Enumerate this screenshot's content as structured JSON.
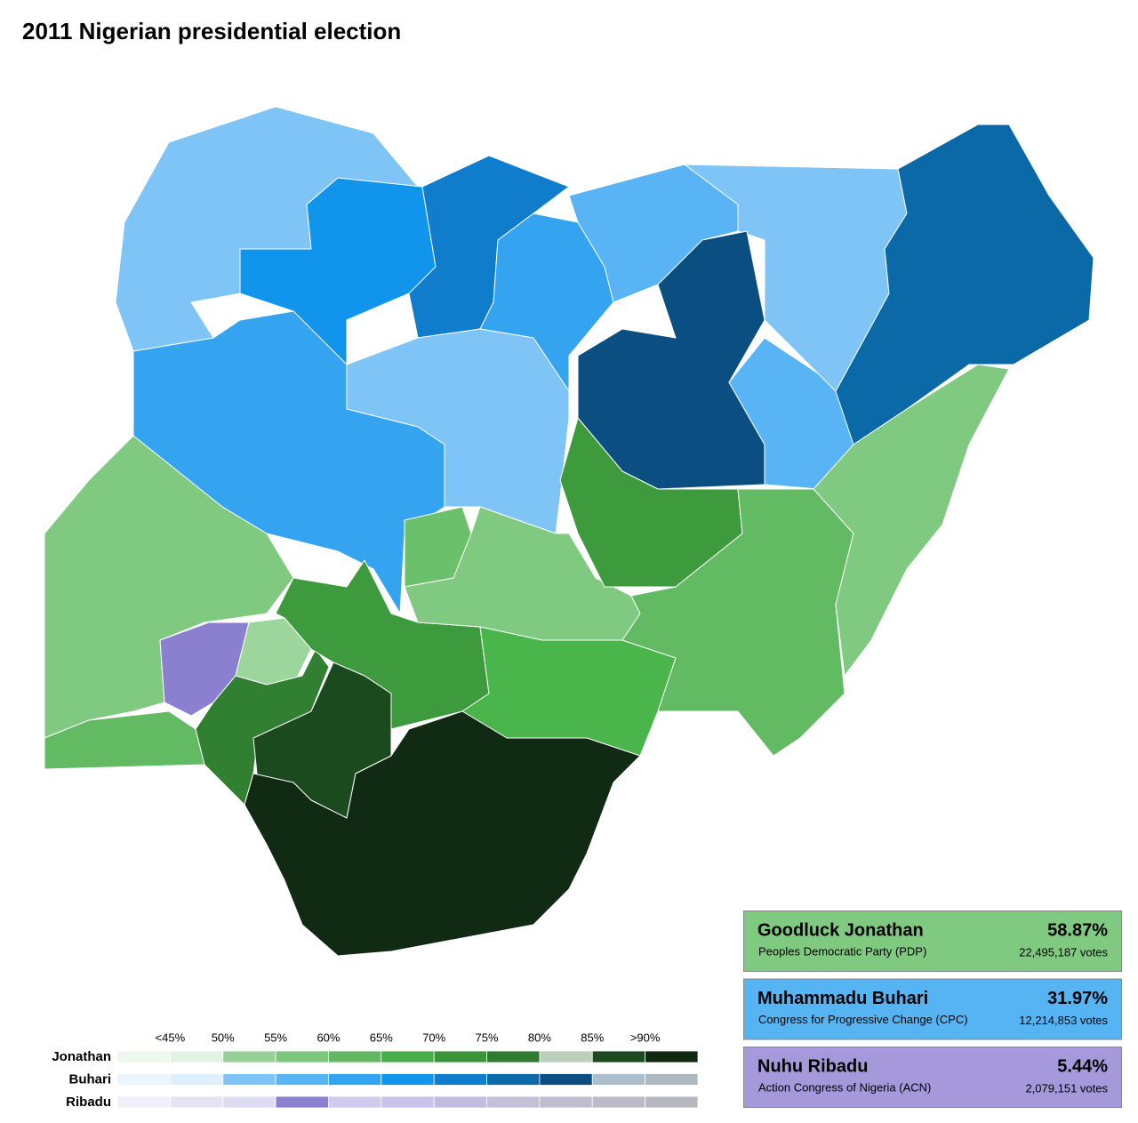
{
  "title": "2011 Nigerian presidential election",
  "legend": {
    "labels": [
      "<45%",
      "50%",
      "55%",
      "60%",
      "65%",
      "70%",
      "75%",
      "80%",
      "85%",
      ">90%"
    ],
    "rows": [
      {
        "name": "Jonathan",
        "colors": [
          "#eef7ee",
          "#e3f3e3",
          "#97d097",
          "#7dc67d",
          "#61b861",
          "#48ad48",
          "#3a943a",
          "#2f7b2f",
          "#bccfbc",
          "#1d4a21",
          "#10280f"
        ]
      },
      {
        "name": "Buhari",
        "colors": [
          "#eaf5fd",
          "#dff0fc",
          "#7ec4f6",
          "#58b4f4",
          "#34a4f0",
          "#1094ec",
          "#0f7dcc",
          "#0b69a8",
          "#0b4f82",
          "#adbfcc",
          "#aeb8c0"
        ]
      },
      {
        "name": "Ribadu",
        "colors": [
          "#f1f0fa",
          "#e6e4f4",
          "#dedcf2",
          "#8b80d0",
          "#d0cbee",
          "#c9c2ec",
          "#c2bde0",
          "#c4c0d8",
          "#c0bdd0",
          "#bbbac6",
          "#b7b7bf"
        ]
      }
    ]
  },
  "results": [
    {
      "name": "Goodluck Jonathan",
      "percent": "58.87%",
      "party": "Peoples Democratic Party (PDP)",
      "votes": "22,495,187 votes",
      "color": "#80c980"
    },
    {
      "name": "Muhammadu Buhari",
      "percent": "31.97%",
      "party": "Congress for Progressive Change (CPC)",
      "votes": "12,214,853 votes",
      "color": "#56b4f2"
    },
    {
      "name": "Nuhu Ribadu",
      "percent": "5.44%",
      "party": "Action Congress of Nigeria (ACN)",
      "votes": "2,079,151 votes",
      "color": "#a599dc"
    }
  ]
}
